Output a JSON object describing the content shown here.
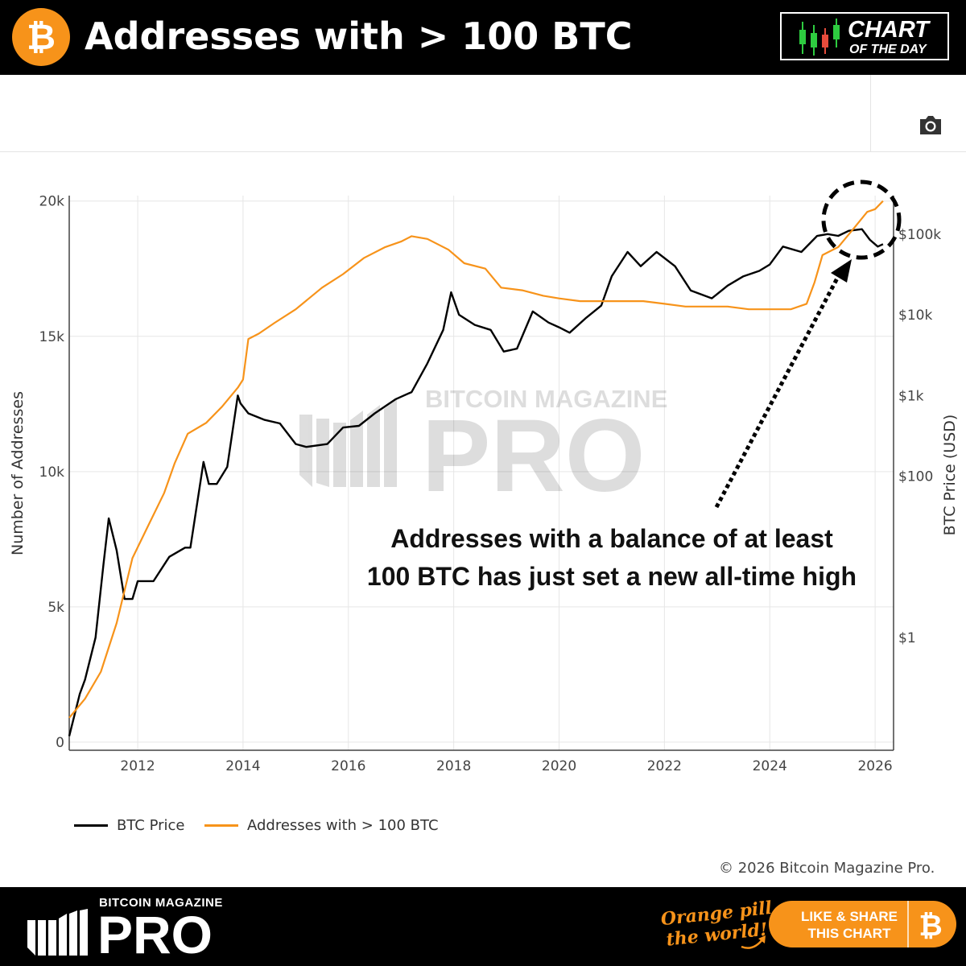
{
  "header": {
    "title": "Addresses with > 100 BTC",
    "badge_line1": "CHART",
    "badge_line2": "OF THE DAY"
  },
  "toolbar": {
    "camera_icon": "camera-icon"
  },
  "watermark": {
    "line1": "BITCOIN MAGAZINE",
    "line2": "PRO"
  },
  "annotation": {
    "line1": "Addresses with a balance of at least",
    "line2": "100 BTC has just set a new all-time high"
  },
  "legend": [
    {
      "label": "BTC Price",
      "color": "#000000"
    },
    {
      "label": "Addresses with > 100 BTC",
      "color": "#f7931a"
    }
  ],
  "copyright": "© 2026 Bitcoin Magazine Pro.",
  "footer": {
    "brand_top": "BITCOIN MAGAZINE",
    "brand_pro": "PRO",
    "tagline_line1": "Orange pill",
    "tagline_line2": "the world!",
    "share_line1": "LIKE & SHARE",
    "share_line2": "THIS CHART"
  },
  "colors": {
    "accent": "#f7931a",
    "price_line": "#000000",
    "address_line": "#f7931a"
  },
  "chart_data": {
    "type": "line",
    "title": "",
    "xlabel": "",
    "ylabel": "Number of Addresses",
    "y2label": "BTC Price (USD)",
    "xlim": [
      2010.7,
      2026.35
    ],
    "ylim": [
      -300,
      20200
    ],
    "y2_scale": "log",
    "y2lim": [
      0.04,
      300000
    ],
    "x_ticks": [
      "2012",
      "2014",
      "2016",
      "2018",
      "2020",
      "2022",
      "2024",
      "2026"
    ],
    "y_ticks": [
      "0",
      "5k",
      "10k",
      "15k",
      "20k"
    ],
    "y2_ticks": [
      "$1",
      "$100",
      "$1k",
      "$10k",
      "$100k"
    ],
    "grid": true,
    "legend_position": "bottom-left",
    "series": [
      {
        "name": "BTC Price",
        "axis": "right",
        "color": "#000000",
        "x": [
          2010.7,
          2010.9,
          2011.0,
          2011.2,
          2011.35,
          2011.45,
          2011.6,
          2011.75,
          2011.9,
          2012.0,
          2012.3,
          2012.6,
          2012.9,
          2013.0,
          2013.25,
          2013.35,
          2013.5,
          2013.7,
          2013.9,
          2013.95,
          2014.1,
          2014.4,
          2014.7,
          2015.0,
          2015.2,
          2015.6,
          2015.9,
          2016.2,
          2016.5,
          2016.9,
          2017.2,
          2017.5,
          2017.8,
          2017.95,
          2018.1,
          2018.4,
          2018.7,
          2018.95,
          2019.2,
          2019.5,
          2019.8,
          2020.0,
          2020.2,
          2020.5,
          2020.8,
          2021.0,
          2021.3,
          2021.55,
          2021.85,
          2022.2,
          2022.5,
          2022.9,
          2023.2,
          2023.5,
          2023.8,
          2024.0,
          2024.25,
          2024.6,
          2024.9,
          2025.1,
          2025.3,
          2025.5,
          2025.75,
          2025.9,
          2026.05,
          2026.15
        ],
        "values": [
          0.06,
          0.2,
          0.3,
          1,
          8,
          30,
          12,
          3,
          3,
          5,
          5,
          10,
          13,
          13,
          150,
          80,
          80,
          130,
          1000,
          800,
          600,
          500,
          450,
          250,
          230,
          250,
          400,
          420,
          600,
          900,
          1100,
          2500,
          6500,
          19000,
          10000,
          7500,
          6500,
          3500,
          3800,
          11000,
          8000,
          7000,
          6000,
          9000,
          13000,
          30000,
          60000,
          40000,
          60000,
          40000,
          20000,
          16000,
          23000,
          30000,
          35000,
          42000,
          70000,
          60000,
          95000,
          100000,
          95000,
          110000,
          115000,
          85000,
          70000,
          75000
        ]
      },
      {
        "name": "Addresses with > 100 BTC",
        "axis": "left",
        "color": "#f7931a",
        "x": [
          2010.7,
          2011.0,
          2011.3,
          2011.6,
          2011.9,
          2012.2,
          2012.5,
          2012.7,
          2012.95,
          2013.3,
          2013.6,
          2013.9,
          2014.0,
          2014.1,
          2014.3,
          2014.6,
          2015.0,
          2015.5,
          2015.9,
          2016.3,
          2016.7,
          2017.0,
          2017.2,
          2017.5,
          2017.9,
          2018.2,
          2018.6,
          2018.9,
          2019.3,
          2019.7,
          2020.0,
          2020.4,
          2020.8,
          2021.2,
          2021.6,
          2022.0,
          2022.4,
          2022.8,
          2023.2,
          2023.6,
          2024.0,
          2024.4,
          2024.7,
          2024.85,
          2025.0,
          2025.3,
          2025.6,
          2025.85,
          2026.0,
          2026.15
        ],
        "values": [
          900,
          1600,
          2600,
          4400,
          6800,
          8000,
          9200,
          10300,
          11400,
          11800,
          12400,
          13100,
          13400,
          14900,
          15100,
          15500,
          16000,
          16800,
          17300,
          17900,
          18300,
          18500,
          18700,
          18600,
          18200,
          17700,
          17500,
          16800,
          16700,
          16500,
          16400,
          16300,
          16300,
          16300,
          16300,
          16200,
          16100,
          16100,
          16100,
          16000,
          16000,
          16000,
          16200,
          17000,
          18000,
          18300,
          19000,
          19600,
          19700,
          20000
        ]
      }
    ]
  }
}
